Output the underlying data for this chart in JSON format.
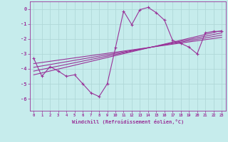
{
  "xlabel": "Windchill (Refroidissement éolien,°C)",
  "background_color": "#c6ecec",
  "grid_color": "#b0d8d8",
  "line_color": "#993399",
  "xlim": [
    -0.5,
    23.5
  ],
  "ylim": [
    -6.8,
    0.5
  ],
  "yticks": [
    0,
    -1,
    -2,
    -3,
    -4,
    -5,
    -6
  ],
  "xticks": [
    0,
    1,
    2,
    3,
    4,
    5,
    6,
    7,
    8,
    9,
    10,
    11,
    12,
    13,
    14,
    15,
    16,
    17,
    18,
    19,
    20,
    21,
    22,
    23
  ],
  "main_line_x": [
    0,
    1,
    2,
    3,
    4,
    5,
    6,
    7,
    8,
    9,
    10,
    11,
    12,
    13,
    14,
    15,
    16,
    17,
    18,
    19,
    20,
    21,
    22,
    23
  ],
  "main_line_y": [
    -3.3,
    -4.5,
    -3.85,
    -4.15,
    -4.5,
    -4.4,
    -5.0,
    -5.6,
    -5.85,
    -5.0,
    -2.6,
    -0.15,
    -1.05,
    -0.05,
    0.1,
    -0.25,
    -0.75,
    -2.1,
    -2.3,
    -2.55,
    -3.0,
    -1.6,
    -1.5,
    -1.5
  ],
  "reg_line1_x": [
    0,
    23
  ],
  "reg_line1_y": [
    -4.4,
    -1.45
  ],
  "reg_line2_x": [
    0,
    23
  ],
  "reg_line2_y": [
    -4.15,
    -1.6
  ],
  "reg_line3_x": [
    0,
    23
  ],
  "reg_line3_y": [
    -3.9,
    -1.75
  ],
  "reg_line4_x": [
    0,
    23
  ],
  "reg_line4_y": [
    -3.65,
    -1.9
  ],
  "font_color": "#993399",
  "tick_color": "#993399",
  "spine_color": "#993399"
}
